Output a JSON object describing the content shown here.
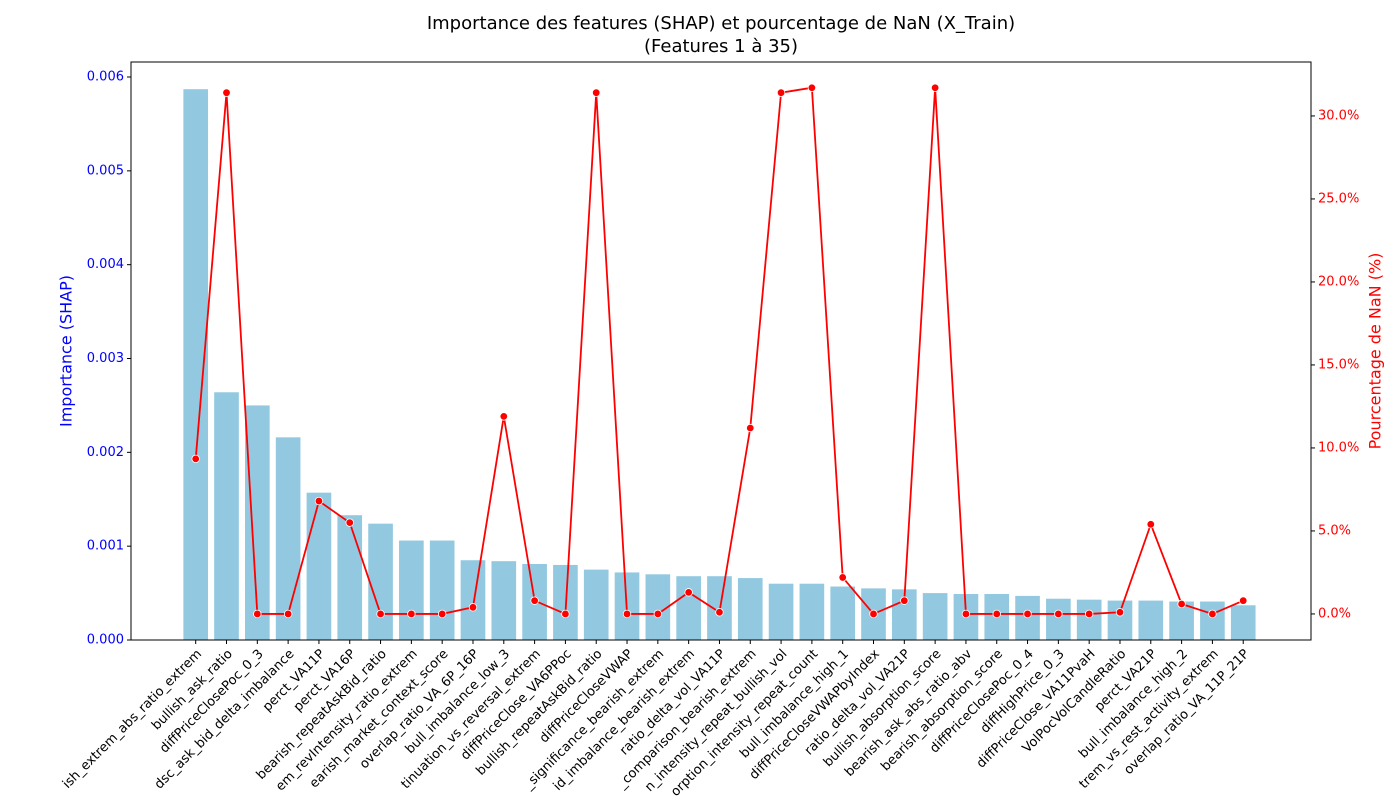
{
  "chart_data": {
    "type": "bar",
    "title": "Importance des features (SHAP) et pourcentage de NaN (X_Train)",
    "subtitle": "(Features 1 à 35)",
    "ylabel": "Importance (SHAP)",
    "y2label": "Pourcentage de NaN (%)",
    "categories": [
      "ish_extrem_abs_ratio_extrem",
      "bullish_ask_ratio",
      "diffPriceClosePoc_0_3",
      "dsc_ask_bid_delta_imbalance",
      "perct_VA11P",
      "perct_VA16P",
      "bearish_repeatAskBid_ratio",
      "em_revIntensity_ratio_extrem",
      "earish_market_context_score",
      "overlap_ratio_VA_6P_16P",
      "bull_imbalance_low_3",
      "tinuation_vs_reversal_extrem",
      "diffPriceClose_VA6PPoc",
      "bullish_repeatAskBid_ratio",
      "diffPriceCloseVWAP",
      "_significance_bearish_extrem",
      "id_imbalance_bearish_extrem",
      "ratio_delta_vol_VA11P",
      "_comparison_bearish_extrem",
      "n_intensity_repeat_bullish_vol",
      "orption_intensity_repeat_count",
      "bull_imbalance_high_1",
      "diffPriceCloseVWAPbyIndex",
      "ratio_delta_vol_VA21P",
      "bullish_absorption_score",
      "bearish_ask_abs_ratio_abv",
      "bearish_absorption_score",
      "diffPriceClosePoc_0_4",
      "diffHighPrice_0_3",
      "diffPriceClose_VA11PvaH",
      "VolPocVolCandleRatio",
      "perct_VA21P",
      "bull_imbalance_high_2",
      "trem_vs_rest_activity_extrem",
      "overlap_ratio_VA_11P_21P"
    ],
    "series": [
      {
        "name": "Importance (SHAP)",
        "type": "bar",
        "color": "#92c9e0",
        "axis": "y",
        "values": [
          0.00587,
          0.00264,
          0.0025,
          0.00216,
          0.00157,
          0.00133,
          0.00124,
          0.00106,
          0.00106,
          0.00085,
          0.00084,
          0.00081,
          0.0008,
          0.00075,
          0.00072,
          0.0007,
          0.00068,
          0.00068,
          0.00066,
          0.0006,
          0.0006,
          0.00057,
          0.00055,
          0.00054,
          0.0005,
          0.00049,
          0.00049,
          0.00047,
          0.00044,
          0.00043,
          0.00042,
          0.00042,
          0.00041,
          0.00041,
          0.00037
        ]
      },
      {
        "name": "Pourcentage de NaN (%)",
        "type": "line",
        "color": "#ff0000",
        "axis": "y2",
        "values": [
          9.34,
          31.4,
          0,
          0,
          6.8,
          5.5,
          0,
          0,
          0,
          0.4,
          11.9,
          0.8,
          0,
          31.4,
          0,
          0,
          1.3,
          0.1,
          11.2,
          31.4,
          31.7,
          2.2,
          0,
          0.8,
          31.7,
          0,
          0,
          0,
          0,
          0,
          0.1,
          5.4,
          0.6,
          0,
          0.8
        ]
      }
    ],
    "ylim": [
      0,
      0.00616
    ],
    "yticks": [
      {
        "value": 0,
        "label": "0.000"
      },
      {
        "value": 0.001,
        "label": "0.001"
      },
      {
        "value": 0.002,
        "label": "0.002"
      },
      {
        "value": 0.003,
        "label": "0.003"
      },
      {
        "value": 0.004,
        "label": "0.004"
      },
      {
        "value": 0.005,
        "label": "0.005"
      },
      {
        "value": 0.006,
        "label": "0.006"
      }
    ],
    "y2lim": [
      -1.57,
      33.25
    ],
    "y2ticks": [
      {
        "value": 0,
        "label": "0.0%"
      },
      {
        "value": 5,
        "label": "5.0%"
      },
      {
        "value": 10,
        "label": "10.0%"
      },
      {
        "value": 15,
        "label": "15.0%"
      },
      {
        "value": 20,
        "label": "20.0%"
      },
      {
        "value": 25,
        "label": "25.0%"
      },
      {
        "value": 30,
        "label": "30.0%"
      }
    ],
    "ytick_color": "#0000ff",
    "y2tick_color": "#ff0000"
  }
}
